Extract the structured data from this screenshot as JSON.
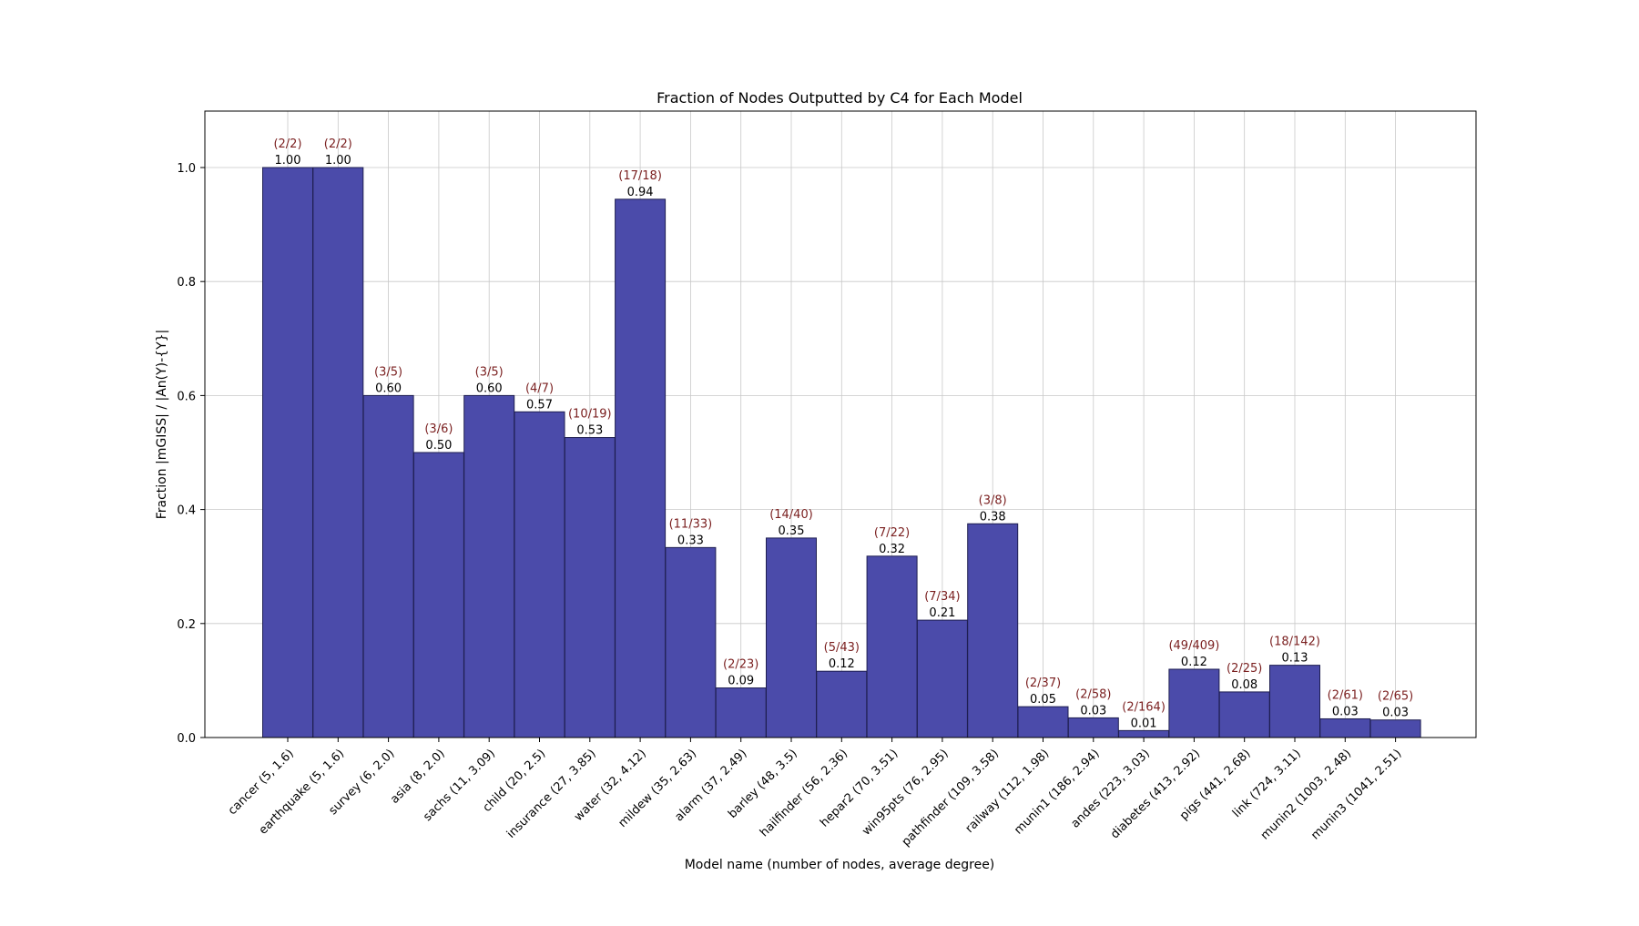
{
  "chart_data": {
    "type": "bar",
    "title": "Fraction of Nodes Outputted by C4 for Each Model",
    "xlabel": "Model name (number of nodes, average degree)",
    "ylabel": "Fraction |mGISS| / |An(Y)-{Y}|",
    "ylim": [
      0.0,
      1.1
    ],
    "yticks": [
      0.0,
      0.2,
      0.4,
      0.6,
      0.8,
      1.0
    ],
    "ytick_labels": [
      "0.0",
      "0.2",
      "0.4",
      "0.6",
      "0.8",
      "1.0"
    ],
    "grid": true,
    "categories": [
      "cancer (5, 1.6)",
      "earthquake (5, 1.6)",
      "survey (6, 2.0)",
      "asia (8, 2.0)",
      "sachs (11, 3.09)",
      "child (20, 2.5)",
      "insurance (27, 3.85)",
      "water (32, 4.12)",
      "mildew (35, 2.63)",
      "alarm (37, 2.49)",
      "barley (48, 3.5)",
      "hailfinder (56, 2.36)",
      "hepar2 (70, 3.51)",
      "win95pts (76, 2.95)",
      "pathfinder (109, 3.58)",
      "railway (112, 1.98)",
      "munin1 (186, 2.94)",
      "andes (223, 3.03)",
      "diabetes (413, 2.92)",
      "pigs (441, 2.68)",
      "link (724, 3.11)",
      "munin2 (1003, 2.48)",
      "munin3 (1041, 2.51)"
    ],
    "values": [
      1.0,
      1.0,
      0.6,
      0.5,
      0.6,
      0.5714,
      0.5263,
      0.9444,
      0.3333,
      0.087,
      0.35,
      0.1163,
      0.3182,
      0.2059,
      0.375,
      0.0541,
      0.0345,
      0.0122,
      0.1198,
      0.08,
      0.1268,
      0.0328,
      0.0308
    ],
    "value_labels": [
      "1.00",
      "1.00",
      "0.60",
      "0.50",
      "0.60",
      "0.57",
      "0.53",
      "0.94",
      "0.33",
      "0.09",
      "0.35",
      "0.12",
      "0.32",
      "0.21",
      "0.38",
      "0.05",
      "0.03",
      "0.01",
      "0.12",
      "0.08",
      "0.13",
      "0.03",
      "0.03"
    ],
    "count_labels": [
      "(2/2)",
      "(2/2)",
      "(3/5)",
      "(3/6)",
      "(3/5)",
      "(4/7)",
      "(10/19)",
      "(17/18)",
      "(11/33)",
      "(2/23)",
      "(14/40)",
      "(5/43)",
      "(7/22)",
      "(7/34)",
      "(3/8)",
      "(2/37)",
      "(2/58)",
      "(2/164)",
      "(49/409)",
      "(2/25)",
      "(18/142)",
      "(2/61)",
      "(2/65)"
    ]
  },
  "colors": {
    "bar_fill": "#4b4baa",
    "bar_edge": "#1e1e50",
    "count_label": "#7a1f1f",
    "value_label": "#000000",
    "grid": "#c8c8c8",
    "axis": "#000000"
  }
}
